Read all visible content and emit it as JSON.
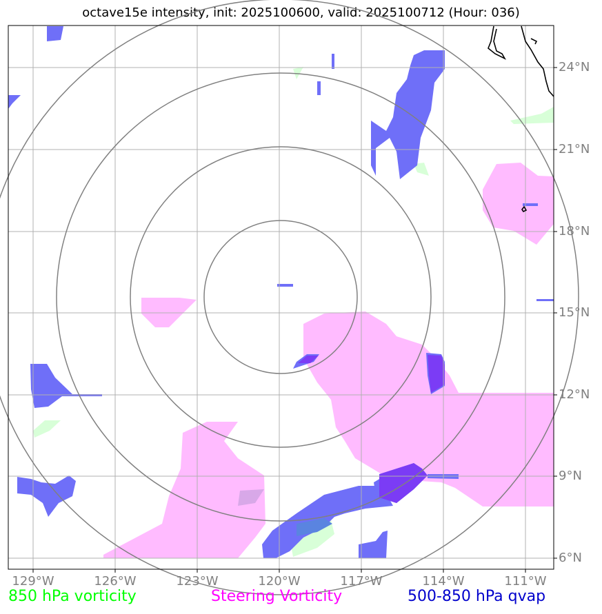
{
  "title": "octave15e intensity, init: 2025100600, valid: 2025100712 (Hour: 036)",
  "map": {
    "lon_range": [
      -130,
      -110
    ],
    "lat_range": [
      5.5,
      25.5
    ],
    "lat_ticks": [
      {
        "value": 24,
        "label": "24°N"
      },
      {
        "value": 21,
        "label": "21°N"
      },
      {
        "value": 18,
        "label": "18°N"
      },
      {
        "value": 15,
        "label": "15°N"
      },
      {
        "value": 12,
        "label": "12°N"
      },
      {
        "value": 9,
        "label": "9°N"
      },
      {
        "value": 6,
        "label": "6°N"
      }
    ],
    "lon_ticks": [
      {
        "value": -129,
        "label": "129°W"
      },
      {
        "value": -126,
        "label": "126°W"
      },
      {
        "value": -123,
        "label": "123°W"
      },
      {
        "value": -120,
        "label": "120°W"
      },
      {
        "value": -117,
        "label": "117°W"
      },
      {
        "value": -114,
        "label": "114°W"
      },
      {
        "value": -111,
        "label": "111°W"
      }
    ],
    "center": {
      "lon": -120,
      "lat": 15.7
    },
    "ring_radii_deg": [
      2.8,
      5.5,
      8.2,
      10.9
    ],
    "colors": {
      "steering": "#ffbbff",
      "qvap": "#6f6ff8",
      "vort850": "#d8ffd8",
      "grid": "#b0b0b0",
      "rings": "#808080",
      "coast": "#000000"
    }
  },
  "legend": {
    "vort850": {
      "label": "850 hPa vorticity",
      "color": "#00ff00"
    },
    "steering": {
      "label": "Steering Vorticity",
      "color": "#ff00ff"
    },
    "qvap": {
      "label": "500-850 hPa qvap",
      "color": "#0000cc"
    }
  }
}
